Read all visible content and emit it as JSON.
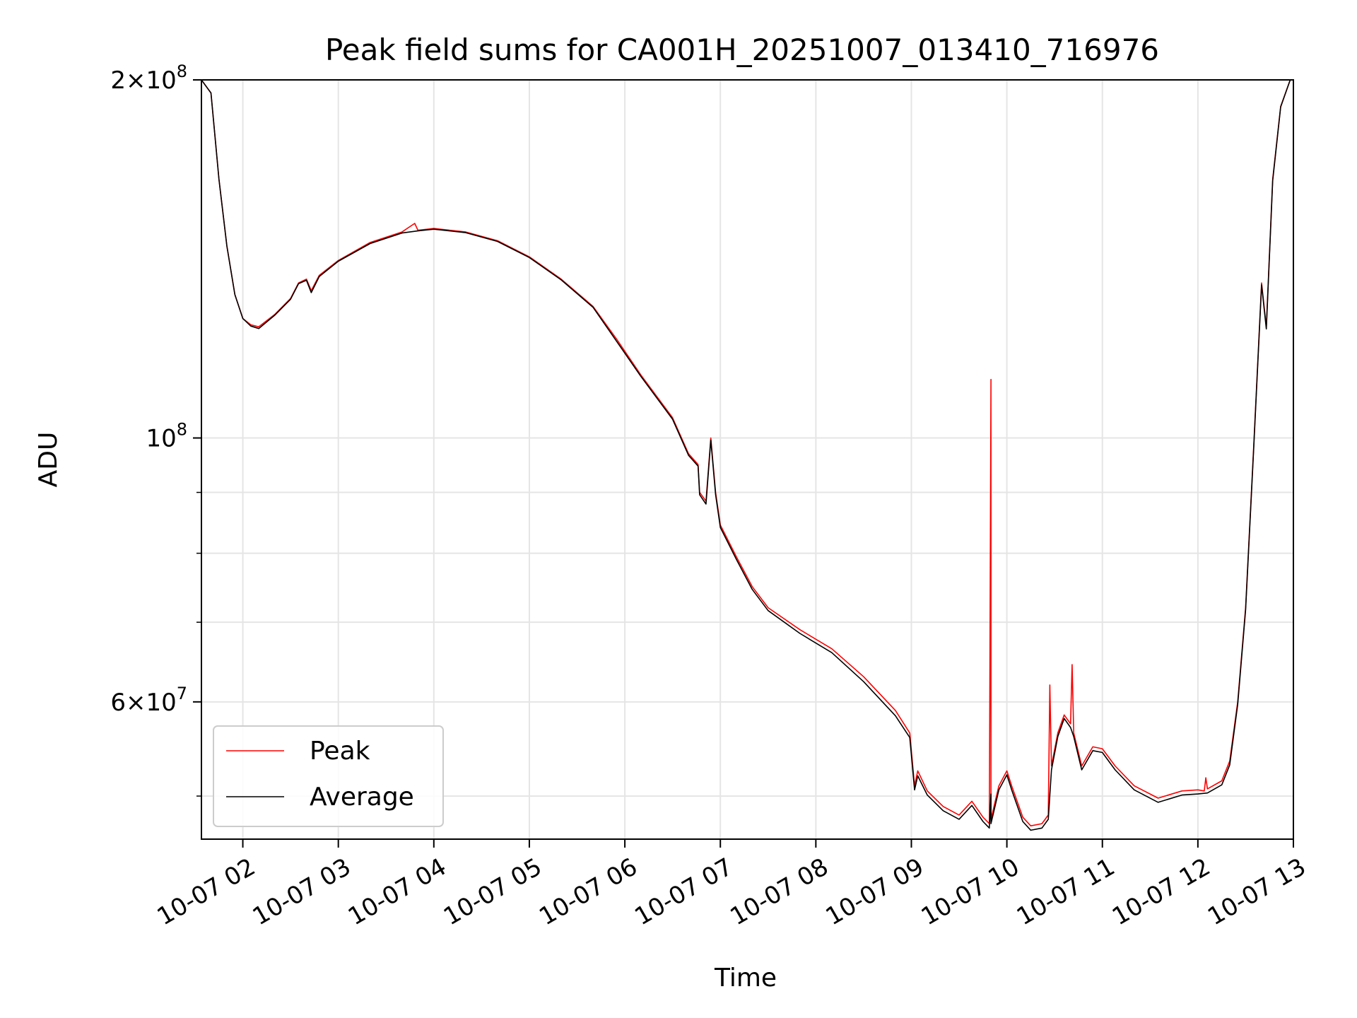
{
  "chart_data": {
    "type": "line",
    "title": "Peak field sums for CA001H_20251007_013410_716976",
    "xlabel": "Time",
    "ylabel": "ADU",
    "x_axis": "datetime",
    "y_scale": "log",
    "xlim": [
      "2025-10-07 01:34",
      "2025-10-07 13:00"
    ],
    "ylim": [
      46000000,
      200000000
    ],
    "grid": true,
    "legend": "lower-left",
    "x_ticks": [
      "2025-10-07 02:00",
      "2025-10-07 03:00",
      "2025-10-07 04:00",
      "2025-10-07 05:00",
      "2025-10-07 06:00",
      "2025-10-07 07:00",
      "2025-10-07 08:00",
      "2025-10-07 09:00",
      "2025-10-07 10:00",
      "2025-10-07 11:00",
      "2025-10-07 12:00",
      "2025-10-07 13:00"
    ],
    "x_tick_labels": [
      "10-07 02",
      "10-07 03",
      "10-07 04",
      "10-07 05",
      "10-07 06",
      "10-07 07",
      "10-07 08",
      "10-07 09",
      "10-07 10",
      "10-07 11",
      "10-07 12",
      "10-07 13"
    ],
    "y_major_ticks": [
      {
        "value": 60000000,
        "mantissa": "6",
        "exponent": "7"
      },
      {
        "value": 100000000,
        "mantissa": "",
        "exponent": "8"
      },
      {
        "value": 200000000,
        "mantissa": "2",
        "exponent": "8"
      }
    ],
    "y_minor_ticks": [
      50000000,
      70000000,
      80000000,
      90000000
    ],
    "series": [
      {
        "name": "Peak",
        "color": "#ff0000",
        "points": [
          [
            "2025-10-07 01:34",
            200000000
          ],
          [
            "2025-10-07 01:40",
            195000000
          ],
          [
            "2025-10-07 01:45",
            165000000
          ],
          [
            "2025-10-07 01:50",
            145000000
          ],
          [
            "2025-10-07 01:55",
            132000000
          ],
          [
            "2025-10-07 02:00",
            126000000
          ],
          [
            "2025-10-07 02:05",
            124500000
          ],
          [
            "2025-10-07 02:10",
            124000000
          ],
          [
            "2025-10-07 02:20",
            127000000
          ],
          [
            "2025-10-07 02:30",
            131000000
          ],
          [
            "2025-10-07 02:35",
            135000000
          ],
          [
            "2025-10-07 02:40",
            136000000
          ],
          [
            "2025-10-07 02:43",
            133000000
          ],
          [
            "2025-10-07 02:48",
            137000000
          ],
          [
            "2025-10-07 03:00",
            141000000
          ],
          [
            "2025-10-07 03:20",
            146000000
          ],
          [
            "2025-10-07 03:40",
            149000000
          ],
          [
            "2025-10-07 03:48",
            151500000
          ],
          [
            "2025-10-07 03:50",
            149500000
          ],
          [
            "2025-10-07 04:00",
            150000000
          ],
          [
            "2025-10-07 04:20",
            149000000
          ],
          [
            "2025-10-07 04:40",
            146500000
          ],
          [
            "2025-10-07 05:00",
            142000000
          ],
          [
            "2025-10-07 05:20",
            136000000
          ],
          [
            "2025-10-07 05:40",
            129000000
          ],
          [
            "2025-10-07 05:55",
            121000000
          ],
          [
            "2025-10-07 06:10",
            113000000
          ],
          [
            "2025-10-07 06:30",
            104000000
          ],
          [
            "2025-10-07 06:40",
            97000000
          ],
          [
            "2025-10-07 06:46",
            95000000
          ],
          [
            "2025-10-07 06:47",
            90000000
          ],
          [
            "2025-10-07 06:51",
            88500000
          ],
          [
            "2025-10-07 06:54",
            100000000
          ],
          [
            "2025-10-07 06:57",
            90000000
          ],
          [
            "2025-10-07 07:00",
            84500000
          ],
          [
            "2025-10-07 07:10",
            79500000
          ],
          [
            "2025-10-07 07:20",
            75000000
          ],
          [
            "2025-10-07 07:30",
            72000000
          ],
          [
            "2025-10-07 07:50",
            69000000
          ],
          [
            "2025-10-07 08:10",
            66500000
          ],
          [
            "2025-10-07 08:30",
            63000000
          ],
          [
            "2025-10-07 08:50",
            59000000
          ],
          [
            "2025-10-07 08:59",
            56500000
          ],
          [
            "2025-10-07 09:02",
            51000000
          ],
          [
            "2025-10-07 09:04",
            52500000
          ],
          [
            "2025-10-07 09:10",
            50500000
          ],
          [
            "2025-10-07 09:20",
            49000000
          ],
          [
            "2025-10-07 09:30",
            48200000
          ],
          [
            "2025-10-07 09:38",
            49500000
          ],
          [
            "2025-10-07 09:45",
            48000000
          ],
          [
            "2025-10-07 09:49",
            47400000
          ],
          [
            "2025-10-07 09:50",
            112000000
          ],
          [
            "2025-10-07 09:50",
            47800000
          ],
          [
            "2025-10-07 09:55",
            51000000
          ],
          [
            "2025-10-07 10:00",
            52500000
          ],
          [
            "2025-10-07 10:03",
            51000000
          ],
          [
            "2025-10-07 10:10",
            48000000
          ],
          [
            "2025-10-07 10:15",
            47200000
          ],
          [
            "2025-10-07 10:22",
            47400000
          ],
          [
            "2025-10-07 10:26",
            48200000
          ],
          [
            "2025-10-07 10:27",
            62000000
          ],
          [
            "2025-10-07 10:28",
            53000000
          ],
          [
            "2025-10-07 10:32",
            56500000
          ],
          [
            "2025-10-07 10:36",
            58500000
          ],
          [
            "2025-10-07 10:40",
            57500000
          ],
          [
            "2025-10-07 10:41",
            64500000
          ],
          [
            "2025-10-07 10:42",
            56500000
          ],
          [
            "2025-10-07 10:47",
            53000000
          ],
          [
            "2025-10-07 10:54",
            55000000
          ],
          [
            "2025-10-07 11:00",
            54800000
          ],
          [
            "2025-10-07 11:08",
            53000000
          ],
          [
            "2025-10-07 11:20",
            51000000
          ],
          [
            "2025-10-07 11:35",
            49800000
          ],
          [
            "2025-10-07 11:50",
            50500000
          ],
          [
            "2025-10-07 12:00",
            50600000
          ],
          [
            "2025-10-07 12:04",
            50500000
          ],
          [
            "2025-10-07 12:05",
            51800000
          ],
          [
            "2025-10-07 12:06",
            50700000
          ],
          [
            "2025-10-07 12:15",
            51500000
          ],
          [
            "2025-10-07 12:20",
            53500000
          ],
          [
            "2025-10-07 12:25",
            60000000
          ],
          [
            "2025-10-07 12:30",
            72000000
          ],
          [
            "2025-10-07 12:35",
            98000000
          ],
          [
            "2025-10-07 12:40",
            135000000
          ],
          [
            "2025-10-07 12:43",
            124000000
          ],
          [
            "2025-10-07 12:47",
            165000000
          ],
          [
            "2025-10-07 12:52",
            190000000
          ],
          [
            "2025-10-07 12:58",
            200000000
          ],
          [
            "2025-10-07 13:00",
            200000000
          ]
        ]
      },
      {
        "name": "Average",
        "color": "#000000",
        "points": [
          [
            "2025-10-07 01:34",
            200000000
          ],
          [
            "2025-10-07 01:40",
            195000000
          ],
          [
            "2025-10-07 01:45",
            165000000
          ],
          [
            "2025-10-07 01:50",
            145000000
          ],
          [
            "2025-10-07 01:55",
            132000000
          ],
          [
            "2025-10-07 02:00",
            126000000
          ],
          [
            "2025-10-07 02:05",
            124200000
          ],
          [
            "2025-10-07 02:10",
            123600000
          ],
          [
            "2025-10-07 02:20",
            126800000
          ],
          [
            "2025-10-07 02:30",
            130800000
          ],
          [
            "2025-10-07 02:35",
            134800000
          ],
          [
            "2025-10-07 02:40",
            135700000
          ],
          [
            "2025-10-07 02:43",
            132500000
          ],
          [
            "2025-10-07 02:48",
            136700000
          ],
          [
            "2025-10-07 03:00",
            140800000
          ],
          [
            "2025-10-07 03:20",
            145700000
          ],
          [
            "2025-10-07 03:40",
            148700000
          ],
          [
            "2025-10-07 03:50",
            149300000
          ],
          [
            "2025-10-07 04:00",
            149800000
          ],
          [
            "2025-10-07 04:20",
            148800000
          ],
          [
            "2025-10-07 04:40",
            146300000
          ],
          [
            "2025-10-07 05:00",
            141800000
          ],
          [
            "2025-10-07 05:20",
            135800000
          ],
          [
            "2025-10-07 05:40",
            128800000
          ],
          [
            "2025-10-07 05:55",
            120500000
          ],
          [
            "2025-10-07 06:10",
            112700000
          ],
          [
            "2025-10-07 06:30",
            103700000
          ],
          [
            "2025-10-07 06:40",
            96700000
          ],
          [
            "2025-10-07 06:46",
            94700000
          ],
          [
            "2025-10-07 06:47",
            89600000
          ],
          [
            "2025-10-07 06:51",
            88000000
          ],
          [
            "2025-10-07 06:54",
            99600000
          ],
          [
            "2025-10-07 06:57",
            89600000
          ],
          [
            "2025-10-07 07:00",
            84100000
          ],
          [
            "2025-10-07 07:10",
            79100000
          ],
          [
            "2025-10-07 07:20",
            74600000
          ],
          [
            "2025-10-07 07:30",
            71600000
          ],
          [
            "2025-10-07 07:50",
            68500000
          ],
          [
            "2025-10-07 08:10",
            66000000
          ],
          [
            "2025-10-07 08:30",
            62400000
          ],
          [
            "2025-10-07 08:50",
            58400000
          ],
          [
            "2025-10-07 08:59",
            56000000
          ],
          [
            "2025-10-07 09:02",
            50600000
          ],
          [
            "2025-10-07 09:04",
            52000000
          ],
          [
            "2025-10-07 09:10",
            50100000
          ],
          [
            "2025-10-07 09:20",
            48600000
          ],
          [
            "2025-10-07 09:30",
            47800000
          ],
          [
            "2025-10-07 09:38",
            49100000
          ],
          [
            "2025-10-07 09:45",
            47600000
          ],
          [
            "2025-10-07 09:49",
            47000000
          ],
          [
            "2025-10-07 09:50",
            50200000
          ],
          [
            "2025-10-07 09:50",
            47400000
          ],
          [
            "2025-10-07 09:55",
            50600000
          ],
          [
            "2025-10-07 10:00",
            52100000
          ],
          [
            "2025-10-07 10:03",
            50600000
          ],
          [
            "2025-10-07 10:10",
            47600000
          ],
          [
            "2025-10-07 10:15",
            46800000
          ],
          [
            "2025-10-07 10:22",
            47000000
          ],
          [
            "2025-10-07 10:26",
            47800000
          ],
          [
            "2025-10-07 10:28",
            52600000
          ],
          [
            "2025-10-07 10:32",
            56100000
          ],
          [
            "2025-10-07 10:36",
            58100000
          ],
          [
            "2025-10-07 10:40",
            57100000
          ],
          [
            "2025-10-07 10:42",
            56100000
          ],
          [
            "2025-10-07 10:47",
            52600000
          ],
          [
            "2025-10-07 10:54",
            54600000
          ],
          [
            "2025-10-07 11:00",
            54400000
          ],
          [
            "2025-10-07 11:08",
            52600000
          ],
          [
            "2025-10-07 11:20",
            50600000
          ],
          [
            "2025-10-07 11:35",
            49400000
          ],
          [
            "2025-10-07 11:50",
            50100000
          ],
          [
            "2025-10-07 12:00",
            50200000
          ],
          [
            "2025-10-07 12:06",
            50300000
          ],
          [
            "2025-10-07 12:15",
            51100000
          ],
          [
            "2025-10-07 12:20",
            53100000
          ],
          [
            "2025-10-07 12:25",
            59700000
          ],
          [
            "2025-10-07 12:30",
            71700000
          ],
          [
            "2025-10-07 12:35",
            97600000
          ],
          [
            "2025-10-07 12:40",
            134500000
          ],
          [
            "2025-10-07 12:43",
            123500000
          ],
          [
            "2025-10-07 12:47",
            164500000
          ],
          [
            "2025-10-07 12:52",
            189800000
          ],
          [
            "2025-10-07 12:58",
            200000000
          ],
          [
            "2025-10-07 13:00",
            200000000
          ]
        ]
      }
    ]
  }
}
